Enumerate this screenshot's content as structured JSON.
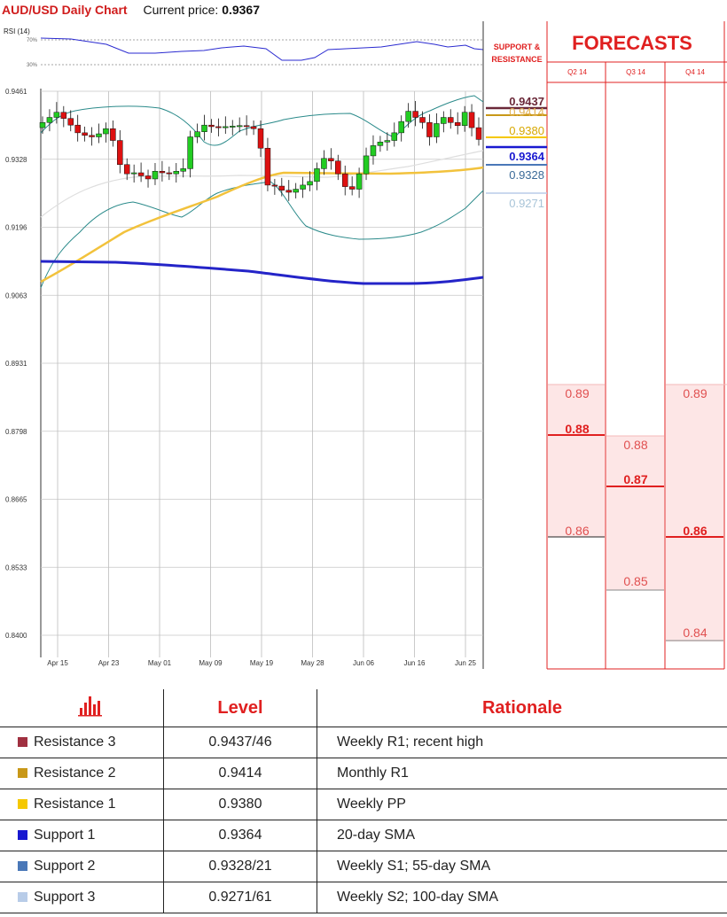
{
  "header": {
    "title": "AUD/USD Daily Chart",
    "price_label": "Current price:",
    "price_value": "0.9367"
  },
  "colors": {
    "accent_red": "#e02020",
    "resistance3": "#a03040",
    "resistance2": "#c89818",
    "resistance1": "#f5c800",
    "support1": "#1818d0",
    "support2": "#4a78b8",
    "support3": "#b8cce8",
    "sma_yellow": "#f2c23c",
    "sma_blue": "#2424c8",
    "bollinger": "#2a8a8a",
    "up_candle": "#22cc22",
    "down_candle": "#dd1111"
  },
  "rsi": {
    "label": "RSI (14)",
    "upper": "70%",
    "lower": "30%"
  },
  "chart_data": {
    "type": "candlestick",
    "title": "AUD/USD Daily Chart",
    "y_ticks": [
      "0.9461",
      "0.9328",
      "0.9196",
      "0.9063",
      "0.8931",
      "0.8798",
      "0.8665",
      "0.8533",
      "0.8400"
    ],
    "ylim": [
      0.84,
      0.9461
    ],
    "x_labels": [
      "Apr 15",
      "Apr 23",
      "May 01",
      "May 09",
      "May 19",
      "May 28",
      "Jun 06",
      "Jun 16",
      "Jun 25"
    ],
    "grid": true,
    "closes": [
      0.94,
      0.941,
      0.942,
      0.9408,
      0.9395,
      0.938,
      0.9375,
      0.9372,
      0.9378,
      0.9388,
      0.9365,
      0.9318,
      0.93,
      0.9302,
      0.9296,
      0.929,
      0.9305,
      0.9302,
      0.93,
      0.9305,
      0.931,
      0.9372,
      0.9382,
      0.9395,
      0.9392,
      0.939,
      0.9392,
      0.9393,
      0.9394,
      0.9392,
      0.9388,
      0.935,
      0.9278,
      0.9276,
      0.9268,
      0.9264,
      0.927,
      0.9278,
      0.9285,
      0.931,
      0.933,
      0.9325,
      0.93,
      0.9275,
      0.927,
      0.93,
      0.9335,
      0.9355,
      0.9362,
      0.9365,
      0.938,
      0.9402,
      0.9422,
      0.941,
      0.94,
      0.9372,
      0.9398,
      0.941,
      0.94,
      0.9394,
      0.942,
      0.939,
      0.9367
    ],
    "sma_55": [
      0.905,
      0.938,
      0.9395,
      0.939,
      0.937
    ],
    "sma_200": [
      0.912,
      0.912,
      0.909,
      0.905,
      0.9063
    ],
    "support_resistance": [
      "0.9437",
      "0.9414",
      "0.9380",
      "0.9364",
      "0.9328",
      "0.9271"
    ]
  },
  "panel": {
    "sr_title_1": "SUPPORT &",
    "sr_title_2": "RESISTANCE",
    "forecasts_title": "FORECASTS",
    "quarters": [
      "Q2 14",
      "Q3 14",
      "Q4 14"
    ],
    "q2": {
      "high": "0.89",
      "mid": "0.88",
      "low": "0.86"
    },
    "q3": {
      "high": "0.88",
      "mid": "0.87",
      "low": "0.85"
    },
    "q4": {
      "high": "0.89",
      "mid": "0.86",
      "low": "0.84"
    }
  },
  "table": {
    "col_level": "Level",
    "col_rationale": "Rationale",
    "rows": [
      {
        "name": "Resistance 3",
        "level": "0.9437/46",
        "rationale": "Weekly R1;  recent high",
        "color": "#a03040"
      },
      {
        "name": "Resistance 2",
        "level": "0.9414",
        "rationale": "Monthly R1",
        "color": "#c89818"
      },
      {
        "name": "Resistance 1",
        "level": "0.9380",
        "rationale": "Weekly PP",
        "color": "#f5c800"
      },
      {
        "name": "Support 1",
        "level": "0.9364",
        "rationale": "20-day SMA",
        "color": "#1818d0"
      },
      {
        "name": "Support 2",
        "level": "0.9328/21",
        "rationale": "Weekly S1; 55-day SMA",
        "color": "#4a78b8"
      },
      {
        "name": "Support 3",
        "level": "0.9271/61",
        "rationale": "Weekly S2; 100-day SMA",
        "color": "#b8cce8"
      }
    ]
  }
}
